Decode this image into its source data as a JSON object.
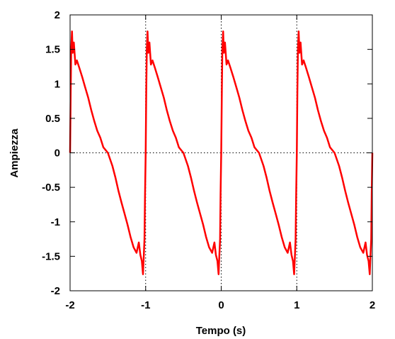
{
  "chart_data": {
    "type": "line",
    "title": "",
    "xlabel": "Tempo (s)",
    "ylabel": "Ampiezza",
    "xlim": [
      -2,
      2
    ],
    "ylim": [
      -2,
      2
    ],
    "xticks": [
      "-2",
      "-1",
      "0",
      "1",
      "2"
    ],
    "yticks": [
      "-2",
      "-1.5",
      "-1",
      "-0.5",
      "0",
      "0.5",
      "1",
      "1.5",
      "2"
    ],
    "grid": {
      "vertical_dotted_at": [
        -1,
        0,
        1
      ],
      "horizontal_dotted_at": [
        0
      ]
    },
    "legend": "none",
    "series": [
      {
        "color": "#ff0000",
        "period": 1,
        "points": [
          [
            -0.5,
            0.0
          ],
          [
            -0.44,
            -0.19
          ],
          [
            -0.4,
            -0.36
          ],
          [
            -0.36,
            -0.55
          ],
          [
            -0.32,
            -0.72
          ],
          [
            -0.28,
            -0.88
          ],
          [
            -0.24,
            -1.04
          ],
          [
            -0.2,
            -1.22
          ],
          [
            -0.16,
            -1.37
          ],
          [
            -0.12,
            -1.45
          ],
          [
            -0.09,
            -1.3
          ],
          [
            -0.07,
            -1.48
          ],
          [
            -0.05,
            -1.57
          ],
          [
            -0.035,
            -1.76
          ],
          [
            -0.025,
            -1.5
          ],
          [
            -0.015,
            -1.25
          ],
          [
            -0.008,
            -0.6
          ],
          [
            0.0,
            0.0
          ],
          [
            0.008,
            0.9
          ],
          [
            0.015,
            1.5
          ],
          [
            0.025,
            1.76
          ],
          [
            0.035,
            1.45
          ],
          [
            0.05,
            1.6
          ],
          [
            0.07,
            1.28
          ],
          [
            0.09,
            1.34
          ],
          [
            0.12,
            1.24
          ],
          [
            0.16,
            1.1
          ],
          [
            0.2,
            0.95
          ],
          [
            0.24,
            0.8
          ],
          [
            0.28,
            0.62
          ],
          [
            0.32,
            0.46
          ],
          [
            0.36,
            0.32
          ],
          [
            0.4,
            0.22
          ],
          [
            0.44,
            0.08
          ],
          [
            0.5,
            0.0
          ]
        ]
      }
    ]
  }
}
